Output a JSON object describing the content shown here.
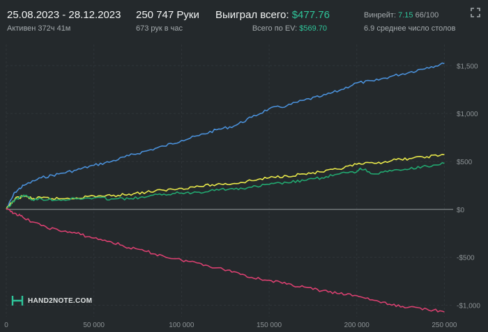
{
  "header": {
    "date_range": "25.08.2023 - 28.12.2023",
    "active_time": "Активен 372ч 41м",
    "hands": "250 747 Руки",
    "hands_per_hour": "673 рук в час",
    "won_label": "Выиграл всего:",
    "won_value": "$477.76",
    "ev_label": "Всего по EV:",
    "ev_value": "$569.70",
    "winrate_label": "Винрейт:",
    "winrate_value": "7.15",
    "winrate_suffix": "66/100",
    "tables": "6.9 среднее число столов"
  },
  "logo": {
    "text": "HAND2NOTE.COM"
  },
  "colors": {
    "background": "#24292c",
    "grid": "#2f3539",
    "zero_line": "#8a8f92",
    "accent_green": "#2fc59a"
  },
  "chart_data": {
    "type": "line",
    "title": "",
    "xlabel": "",
    "ylabel": "",
    "xlim": [
      0,
      255000
    ],
    "ylim": [
      -1120,
      1720
    ],
    "x_ticks": [
      0,
      50000,
      100000,
      150000,
      200000,
      250000
    ],
    "x_tick_labels": [
      "0",
      "50 000",
      "100 000",
      "150 000",
      "200 000",
      "250 000"
    ],
    "y_ticks": [
      1500,
      1000,
      500,
      0,
      -500,
      -1000
    ],
    "y_tick_labels": [
      "$1,500",
      "$1,000",
      "$500",
      "$0",
      "-$500",
      "-$1,000"
    ],
    "grid": true,
    "series": [
      {
        "color": "#4a90d9",
        "x": [
          0,
          5000,
          10000,
          20000,
          30000,
          40000,
          50000,
          60000,
          70000,
          80000,
          90000,
          100000,
          110000,
          120000,
          130000,
          140000,
          150000,
          160000,
          170000,
          180000,
          190000,
          200000,
          210000,
          220000,
          230000,
          240000,
          250000
        ],
        "y": [
          0,
          180,
          250,
          330,
          370,
          410,
          460,
          500,
          560,
          610,
          660,
          720,
          770,
          830,
          870,
          960,
          1050,
          1080,
          1140,
          1180,
          1240,
          1320,
          1340,
          1390,
          1430,
          1480,
          1520
        ]
      },
      {
        "color": "#e8e84a",
        "x": [
          0,
          5000,
          10000,
          15000,
          20000,
          30000,
          40000,
          50000,
          60000,
          70000,
          80000,
          90000,
          100000,
          110000,
          120000,
          130000,
          140000,
          150000,
          160000,
          170000,
          180000,
          190000,
          200000,
          210000,
          220000,
          230000,
          240000,
          250000
        ],
        "y": [
          0,
          110,
          140,
          110,
          120,
          110,
          120,
          140,
          140,
          160,
          180,
          200,
          220,
          240,
          260,
          270,
          300,
          330,
          350,
          370,
          390,
          420,
          470,
          480,
          510,
          530,
          550,
          570
        ]
      },
      {
        "color": "#22a870",
        "x": [
          0,
          5000,
          10000,
          15000,
          20000,
          30000,
          40000,
          50000,
          60000,
          70000,
          80000,
          90000,
          100000,
          110000,
          120000,
          130000,
          140000,
          150000,
          160000,
          170000,
          180000,
          190000,
          200000,
          202000,
          210000,
          220000,
          230000,
          240000,
          250000
        ],
        "y": [
          0,
          100,
          150,
          100,
          110,
          100,
          110,
          120,
          110,
          110,
          130,
          160,
          170,
          180,
          210,
          210,
          230,
          260,
          280,
          300,
          330,
          370,
          390,
          430,
          370,
          400,
          420,
          450,
          480
        ]
      },
      {
        "color": "#d94070",
        "x": [
          0,
          5000,
          10000,
          20000,
          30000,
          40000,
          50000,
          60000,
          70000,
          80000,
          90000,
          100000,
          110000,
          120000,
          130000,
          140000,
          150000,
          160000,
          170000,
          180000,
          190000,
          200000,
          210000,
          220000,
          230000,
          240000,
          250000
        ],
        "y": [
          0,
          -40,
          -90,
          -170,
          -220,
          -250,
          -300,
          -340,
          -400,
          -440,
          -490,
          -530,
          -560,
          -610,
          -650,
          -710,
          -740,
          -780,
          -810,
          -850,
          -880,
          -900,
          -950,
          -1000,
          -1020,
          -1040,
          -1070
        ]
      }
    ]
  }
}
